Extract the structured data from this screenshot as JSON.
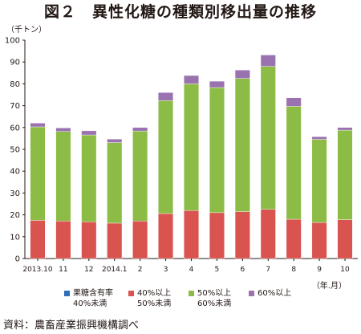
{
  "title": "図２　異性化糖の種類別移出量の推移",
  "source": "資料：農畜産業振興機構調べ",
  "colors": {
    "s1": "#2f6fb7",
    "s2": "#d9534f",
    "s3": "#8cbc45",
    "s4": "#9b72b0"
  },
  "chart_data": {
    "type": "bar",
    "stacked": true,
    "ylabel": "（千トン）",
    "xlabel": "（年.月）",
    "ylim": [
      0,
      100
    ],
    "yticks": [
      0,
      10,
      20,
      30,
      40,
      50,
      60,
      70,
      80,
      90,
      100
    ],
    "grid": false,
    "legend_position": "bottom",
    "categories": [
      "2013.10",
      "11",
      "12",
      "2014.1",
      "2",
      "3",
      "4",
      "5",
      "6",
      "7",
      "8",
      "9",
      "10"
    ],
    "series": [
      {
        "name_line1": "果糖含有率",
        "name_line2": "40%未満",
        "values": [
          0,
          0,
          0,
          0,
          0,
          0,
          0,
          0,
          0,
          0,
          0,
          0,
          0
        ]
      },
      {
        "name_line1": "40%以上",
        "name_line2": "50%未満",
        "values": [
          17.5,
          17.2,
          16.8,
          16.2,
          17.2,
          20.6,
          22.0,
          21.0,
          21.5,
          22.5,
          18.0,
          16.5,
          17.8
        ]
      },
      {
        "name_line1": "50%以上",
        "name_line2": "60%未満",
        "values": [
          42.8,
          41.0,
          39.8,
          36.9,
          41.2,
          51.7,
          58.0,
          57.3,
          61.0,
          65.5,
          51.7,
          38.1,
          41.0
        ]
      },
      {
        "name_line1": "60%以上",
        "name_line2": "",
        "values": [
          1.7,
          1.6,
          1.9,
          1.6,
          1.6,
          3.7,
          3.8,
          2.9,
          3.8,
          5.2,
          3.9,
          1.2,
          1.2
        ]
      }
    ]
  }
}
